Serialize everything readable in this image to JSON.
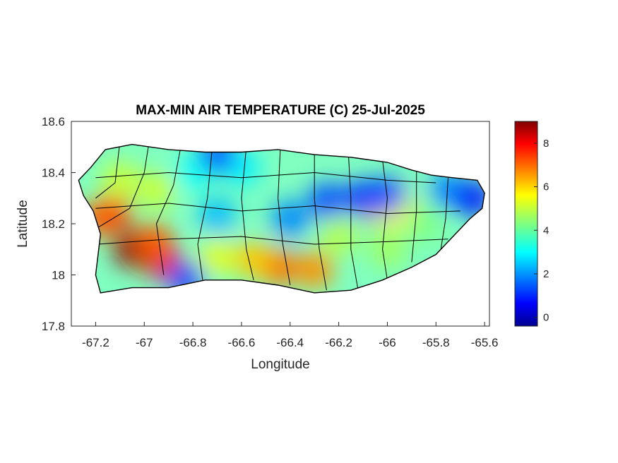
{
  "chart_data": {
    "type": "heatmap",
    "title": "MAX-MIN AIR TEMPERATURE (C) 25-Jul-2025",
    "xlabel": "Longitude",
    "ylabel": "Latitude",
    "xlim": [
      -67.3,
      -65.58
    ],
    "ylim": [
      17.8,
      18.6
    ],
    "x_ticks": [
      "-67.2",
      "-67",
      "-66.8",
      "-66.6",
      "-66.4",
      "-66.2",
      "-66",
      "-65.8",
      "-65.6"
    ],
    "y_ticks": [
      "18.6",
      "18.4",
      "18.2",
      "18",
      "17.8"
    ],
    "x_tick_values": [
      -67.2,
      -67.0,
      -66.8,
      -66.6,
      -66.4,
      -66.2,
      -66.0,
      -65.8,
      -65.6
    ],
    "y_tick_values": [
      18.6,
      18.4,
      18.2,
      18.0,
      17.8
    ],
    "colorbar": {
      "colormap": "jet",
      "range": [
        -0.4,
        9.0
      ],
      "ticks": [
        "0",
        "2",
        "4",
        "6",
        "8"
      ],
      "tick_values": [
        0,
        2,
        4,
        6,
        8
      ]
    },
    "island_outline": [
      [
        -67.27,
        18.37
      ],
      [
        -67.22,
        18.42
      ],
      [
        -67.16,
        18.49
      ],
      [
        -67.05,
        18.51
      ],
      [
        -66.9,
        18.49
      ],
      [
        -66.75,
        18.48
      ],
      [
        -66.6,
        18.48
      ],
      [
        -66.45,
        18.49
      ],
      [
        -66.3,
        18.47
      ],
      [
        -66.15,
        18.46
      ],
      [
        -66.0,
        18.44
      ],
      [
        -65.9,
        18.41
      ],
      [
        -65.82,
        18.39
      ],
      [
        -65.73,
        18.38
      ],
      [
        -65.63,
        18.37
      ],
      [
        -65.6,
        18.32
      ],
      [
        -65.61,
        18.26
      ],
      [
        -65.66,
        18.22
      ],
      [
        -65.72,
        18.16
      ],
      [
        -65.8,
        18.08
      ],
      [
        -65.9,
        18.03
      ],
      [
        -66.02,
        17.98
      ],
      [
        -66.15,
        17.94
      ],
      [
        -66.3,
        17.93
      ],
      [
        -66.45,
        17.96
      ],
      [
        -66.6,
        17.98
      ],
      [
        -66.75,
        17.98
      ],
      [
        -66.9,
        17.95
      ],
      [
        -67.05,
        17.95
      ],
      [
        -67.18,
        17.93
      ],
      [
        -67.2,
        18.0
      ],
      [
        -67.19,
        18.08
      ],
      [
        -67.18,
        18.16
      ],
      [
        -67.21,
        18.25
      ],
      [
        -67.25,
        18.31
      ]
    ],
    "temperature_spots": [
      {
        "lon": -67.05,
        "lat": 18.1,
        "value": 8.8
      },
      {
        "lon": -66.92,
        "lat": 18.05,
        "value": 8.0
      },
      {
        "lon": -67.13,
        "lat": 18.24,
        "value": 7.5
      },
      {
        "lon": -67.18,
        "lat": 18.22,
        "value": 7.0
      },
      {
        "lon": -66.96,
        "lat": 18.13,
        "value": 7.0
      },
      {
        "lon": -66.45,
        "lat": 18.03,
        "value": 6.8
      },
      {
        "lon": -66.3,
        "lat": 18.02,
        "value": 6.5
      },
      {
        "lon": -66.55,
        "lat": 18.06,
        "value": 6.0
      },
      {
        "lon": -66.05,
        "lat": 18.27,
        "value": 6.0
      },
      {
        "lon": -65.95,
        "lat": 18.25,
        "value": 5.5
      },
      {
        "lon": -66.7,
        "lat": 18.07,
        "value": 5.2
      },
      {
        "lon": -67.1,
        "lat": 18.37,
        "value": 5.0
      },
      {
        "lon": -66.95,
        "lat": 18.33,
        "value": 5.0
      },
      {
        "lon": -66.2,
        "lat": 18.15,
        "value": 4.8
      },
      {
        "lon": -66.0,
        "lat": 18.1,
        "value": 4.6
      },
      {
        "lon": -65.85,
        "lat": 18.2,
        "value": 4.3
      },
      {
        "lon": -66.8,
        "lat": 18.4,
        "value": 3.2
      },
      {
        "lon": -66.6,
        "lat": 18.42,
        "value": 3.0
      },
      {
        "lon": -66.7,
        "lat": 18.23,
        "value": 2.5
      },
      {
        "lon": -66.4,
        "lat": 18.22,
        "value": 2.0
      },
      {
        "lon": -66.25,
        "lat": 18.29,
        "value": 1.5
      },
      {
        "lon": -66.1,
        "lat": 18.3,
        "value": 1.3
      },
      {
        "lon": -66.0,
        "lat": 18.31,
        "value": 1.5
      },
      {
        "lon": -66.7,
        "lat": 18.47,
        "value": 1.5
      },
      {
        "lon": -65.75,
        "lat": 18.33,
        "value": 2.0
      },
      {
        "lon": -65.65,
        "lat": 18.3,
        "value": 1.0
      },
      {
        "lon": -66.83,
        "lat": 17.98,
        "value": 1.5
      }
    ]
  }
}
